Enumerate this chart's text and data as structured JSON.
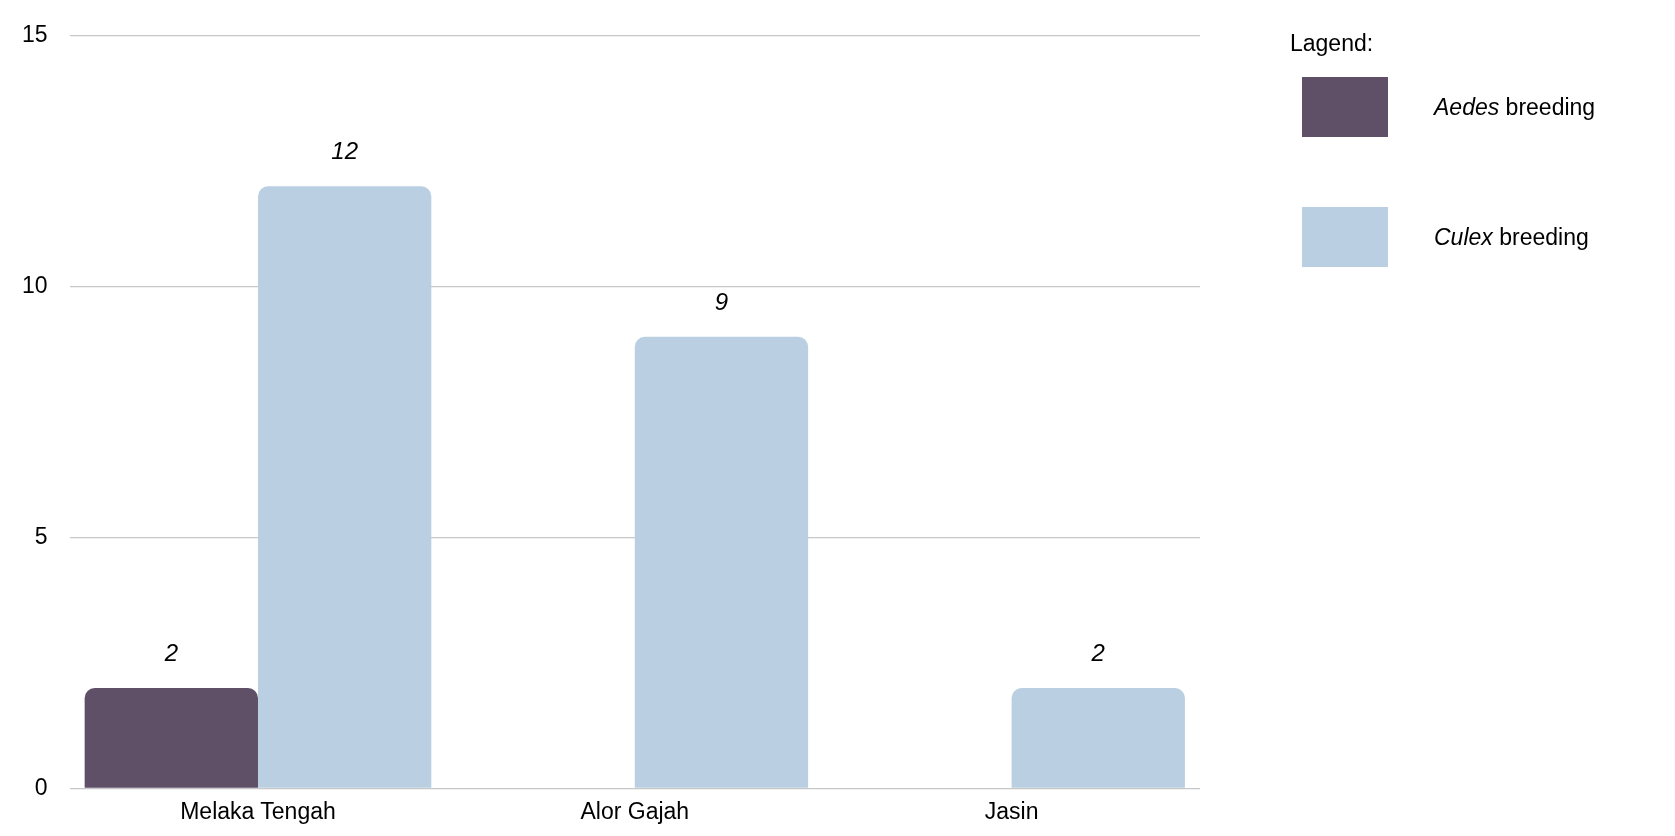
{
  "chart_data": {
    "type": "bar",
    "categories": [
      "Melaka Tengah",
      "Alor Gajah",
      "Jasin"
    ],
    "series": [
      {
        "name": "Aedes breeding",
        "color": "#5f5068",
        "values": [
          2,
          null,
          null
        ]
      },
      {
        "name": "Culex breeding",
        "color": "#bad0e2",
        "values": [
          12,
          9,
          2
        ]
      }
    ],
    "ylim": [
      0,
      15
    ],
    "yticks": [
      0,
      5,
      10,
      15
    ],
    "grid": "y",
    "legend": "right",
    "legend_title": "Lagend:",
    "data_labels": true
  }
}
